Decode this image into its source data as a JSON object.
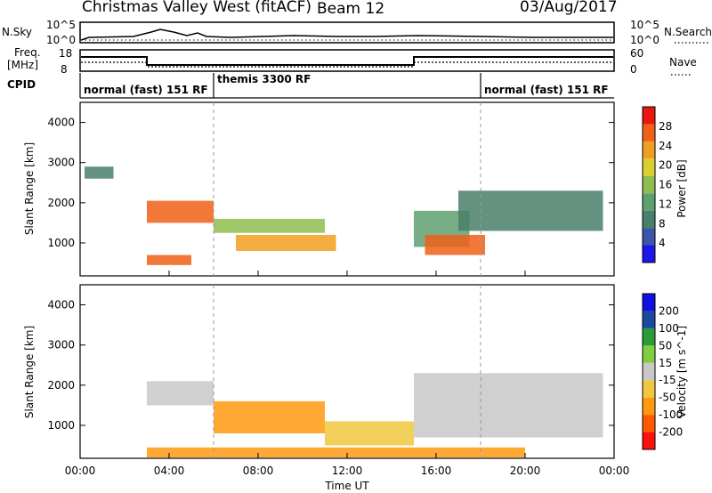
{
  "header": {
    "title": "Christmas Valley West (fitACF)",
    "beam": "Beam 12",
    "date": "03/Aug/2017"
  },
  "panels": {
    "nsky": {
      "left_label": "N.Sky",
      "right_label": "N.Search",
      "tick_top": "10^5",
      "tick_bottom": "10^0"
    },
    "freq": {
      "left_label_line1": "Freq.",
      "left_label_line2": "[MHz]",
      "left_ticks": [
        "18",
        "8"
      ],
      "right_label": "Nave",
      "right_ticks": [
        "60",
        "0"
      ]
    },
    "cpid": {
      "label": "CPID",
      "modes": [
        {
          "text": "normal (fast) 151 RF",
          "start_hour": 0
        },
        {
          "text": "themis 3300 RF",
          "start_hour": 6
        },
        {
          "text": "normal (fast) 151 RF",
          "start_hour": 18
        }
      ]
    }
  },
  "colors": {
    "power_scale": [
      "#1d16e8",
      "#3b55a8",
      "#4a7f6a",
      "#5fa070",
      "#8fbd50",
      "#d8d030",
      "#f0a020",
      "#f06018",
      "#e81810"
    ],
    "velocity_scale": [
      "#ff1010",
      "#ff5a00",
      "#ff9a10",
      "#f0c840",
      "#c8c8c8",
      "#7fcf40",
      "#2a9a3a",
      "#1a4aa0",
      "#1010e0"
    ]
  },
  "chart_data": [
    {
      "type": "heatmap",
      "title": "Power",
      "xlabel": "",
      "ylabel": "Slant Range [km]",
      "xlim": [
        0,
        24
      ],
      "ylim": [
        180,
        4500
      ],
      "yticks": [
        1000,
        2000,
        3000,
        4000
      ],
      "colorbar": {
        "label": "Power [dB]",
        "ticks": [
          4,
          8,
          12,
          16,
          20,
          24,
          28
        ],
        "range": [
          0,
          32
        ]
      },
      "regions": [
        {
          "x0": 3.0,
          "x1": 6.0,
          "y0": 1500,
          "y1": 2050,
          "value": 28
        },
        {
          "x0": 6.0,
          "x1": 11.0,
          "y0": 1250,
          "y1": 1600,
          "value": 16
        },
        {
          "x0": 7.0,
          "x1": 11.5,
          "y0": 800,
          "y1": 1200,
          "value": 24
        },
        {
          "x0": 15.0,
          "x1": 17.5,
          "y0": 900,
          "y1": 1800,
          "value": 14
        },
        {
          "x0": 15.5,
          "x1": 18.2,
          "y0": 700,
          "y1": 1200,
          "value": 28
        },
        {
          "x0": 17.0,
          "x1": 23.5,
          "y0": 1300,
          "y1": 2300,
          "value": 10
        },
        {
          "x0": 0.2,
          "x1": 1.5,
          "y0": 2600,
          "y1": 2900,
          "value": 8
        },
        {
          "x0": 3.0,
          "x1": 5.0,
          "y0": 450,
          "y1": 700,
          "value": 26
        }
      ]
    },
    {
      "type": "heatmap",
      "title": "Velocity",
      "xlabel": "Time UT",
      "ylabel": "Slant Range [km]",
      "xlim": [
        0,
        24
      ],
      "xticks": [
        "00:00",
        "04:00",
        "08:00",
        "12:00",
        "16:00",
        "20:00",
        "00:00"
      ],
      "ylim": [
        180,
        4500
      ],
      "yticks": [
        1000,
        2000,
        3000,
        4000
      ],
      "colorbar": {
        "label": "Velocity [m s^-1]",
        "ticks": [
          "200",
          "100",
          "50",
          "15",
          "-15",
          "-50",
          "-100",
          "-200"
        ]
      },
      "regions": [
        {
          "x0": 3.0,
          "x1": 6.0,
          "y0": 1500,
          "y1": 2100,
          "value": 0
        },
        {
          "x0": 6.0,
          "x1": 11.0,
          "y0": 800,
          "y1": 1600,
          "value": -60
        },
        {
          "x0": 11.0,
          "x1": 15.0,
          "y0": 500,
          "y1": 1100,
          "value": -30
        },
        {
          "x0": 15.0,
          "x1": 23.5,
          "y0": 700,
          "y1": 2300,
          "value": 0
        },
        {
          "x0": 3.0,
          "x1": 20.0,
          "y0": 200,
          "y1": 450,
          "value": -80
        }
      ]
    }
  ]
}
